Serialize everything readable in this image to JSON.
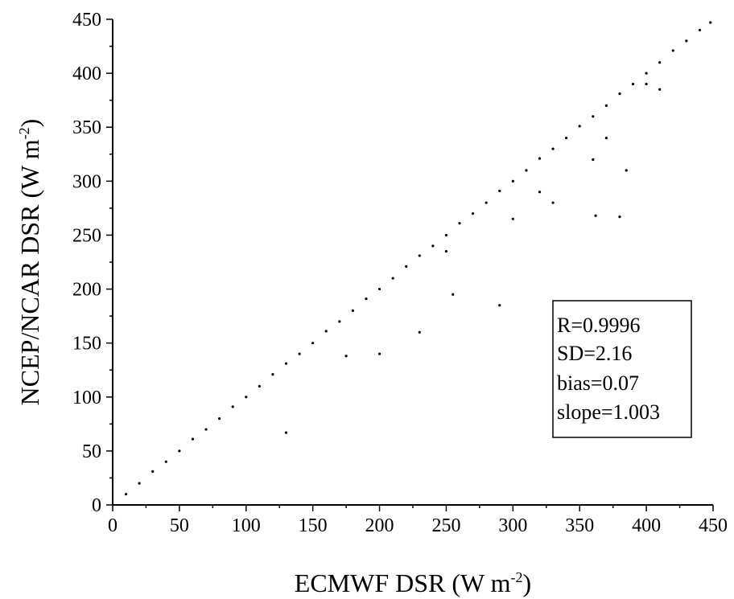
{
  "chart_data": {
    "type": "scatter",
    "xlabel": "ECMWF DSR (W m",
    "xlabel_sup": "-2",
    "xlabel_end": ")",
    "ylabel": "NCEP/NCAR DSR (W m",
    "ylabel_sup": "-2",
    "ylabel_end": ")",
    "xlim": [
      0,
      450
    ],
    "ylim": [
      0,
      450
    ],
    "xticks": [
      0,
      50,
      100,
      150,
      200,
      250,
      300,
      350,
      400,
      450
    ],
    "yticks": [
      0,
      50,
      100,
      150,
      200,
      250,
      300,
      350,
      400,
      450
    ],
    "grid": false,
    "marker_color": "#000000",
    "series": [
      {
        "x": [
          10,
          20,
          30,
          40,
          50,
          60,
          70,
          80,
          90,
          100,
          110,
          120,
          130,
          140,
          150,
          160,
          170,
          180,
          190,
          200,
          210,
          220,
          230,
          240,
          250,
          260,
          270,
          280,
          290,
          300,
          310,
          320,
          330,
          340,
          350,
          360,
          370,
          380,
          390,
          400,
          410,
          420,
          430,
          440,
          448,
          130,
          230,
          255,
          290,
          330,
          362,
          380,
          385,
          360,
          370,
          400,
          200,
          175,
          250,
          300,
          320,
          410
        ],
        "y": [
          10,
          20,
          31,
          40,
          50,
          61,
          70,
          80,
          91,
          100,
          110,
          121,
          131,
          140,
          150,
          161,
          170,
          180,
          191,
          200,
          210,
          221,
          231,
          240,
          250,
          261,
          270,
          280,
          291,
          300,
          310,
          321,
          330,
          340,
          351,
          360,
          370,
          381,
          390,
          400,
          410,
          421,
          430,
          440,
          447,
          67,
          160,
          195,
          185,
          280,
          268,
          267,
          310,
          320,
          340,
          390,
          140,
          138,
          235,
          265,
          290,
          385
        ]
      }
    ],
    "stats": [
      "R=0.9996",
      "SD=2.16",
      "bias=0.07",
      "slope=1.003"
    ]
  }
}
